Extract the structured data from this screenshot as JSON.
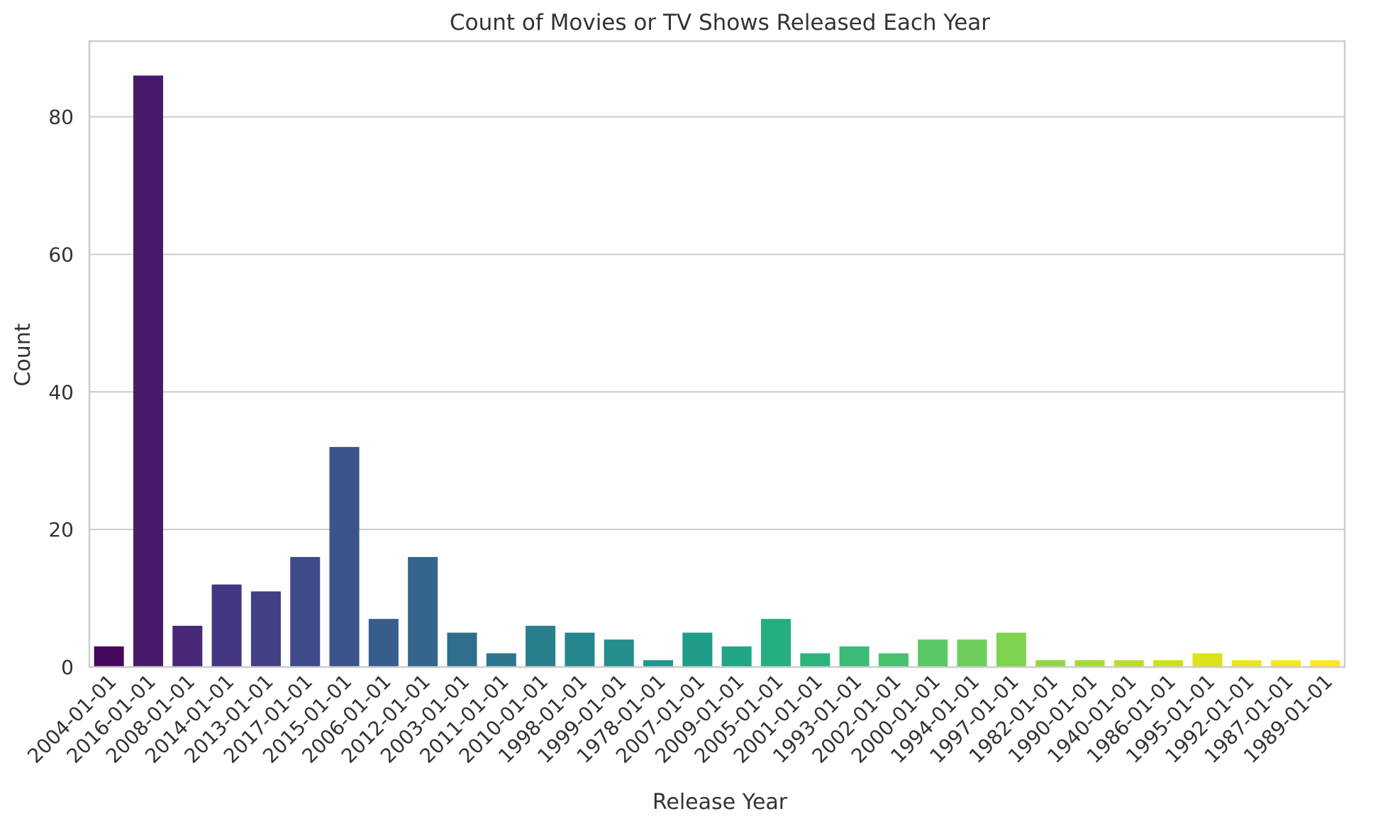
{
  "chart_data": {
    "type": "bar",
    "title": "Count of Movies or TV Shows Released Each Year",
    "xlabel": "Release Year",
    "ylabel": "Count",
    "ylim": [
      0,
      91
    ],
    "yticks": [
      0,
      20,
      40,
      60,
      80
    ],
    "grid": "horizontal",
    "palette": "viridis",
    "categories": [
      "2004-01-01",
      "2016-01-01",
      "2008-01-01",
      "2014-01-01",
      "2013-01-01",
      "2017-01-01",
      "2015-01-01",
      "2006-01-01",
      "2012-01-01",
      "2003-01-01",
      "2011-01-01",
      "2010-01-01",
      "1998-01-01",
      "1999-01-01",
      "1978-01-01",
      "2007-01-01",
      "2009-01-01",
      "2005-01-01",
      "2001-01-01",
      "1993-01-01",
      "2002-01-01",
      "2000-01-01",
      "1994-01-01",
      "1997-01-01",
      "1982-01-01",
      "1990-01-01",
      "1940-01-01",
      "1986-01-01",
      "1995-01-01",
      "1992-01-01",
      "1987-01-01",
      "1989-01-01"
    ],
    "values": [
      3,
      86,
      6,
      12,
      11,
      16,
      32,
      7,
      16,
      5,
      2,
      6,
      5,
      4,
      1,
      5,
      3,
      7,
      2,
      3,
      2,
      4,
      4,
      5,
      1,
      1,
      1,
      1,
      2,
      1,
      1,
      1
    ],
    "colors": [
      "#46085c",
      "#471a6b",
      "#472878",
      "#463582",
      "#423f85",
      "#3f4a89",
      "#3b548b",
      "#375d8c",
      "#33658d",
      "#306e8e",
      "#2c768e",
      "#297f8e",
      "#26868e",
      "#238e8c",
      "#21968b",
      "#1f9d89",
      "#22a585",
      "#26ad81",
      "#2db47c",
      "#3cbb76",
      "#48c16e",
      "#5ac866",
      "#6ccd5a",
      "#7ed34f",
      "#92d742",
      "#a5da35",
      "#b8de29",
      "#cbe11e",
      "#dde318",
      "#ece51c",
      "#f5e626",
      "#fde725"
    ]
  }
}
